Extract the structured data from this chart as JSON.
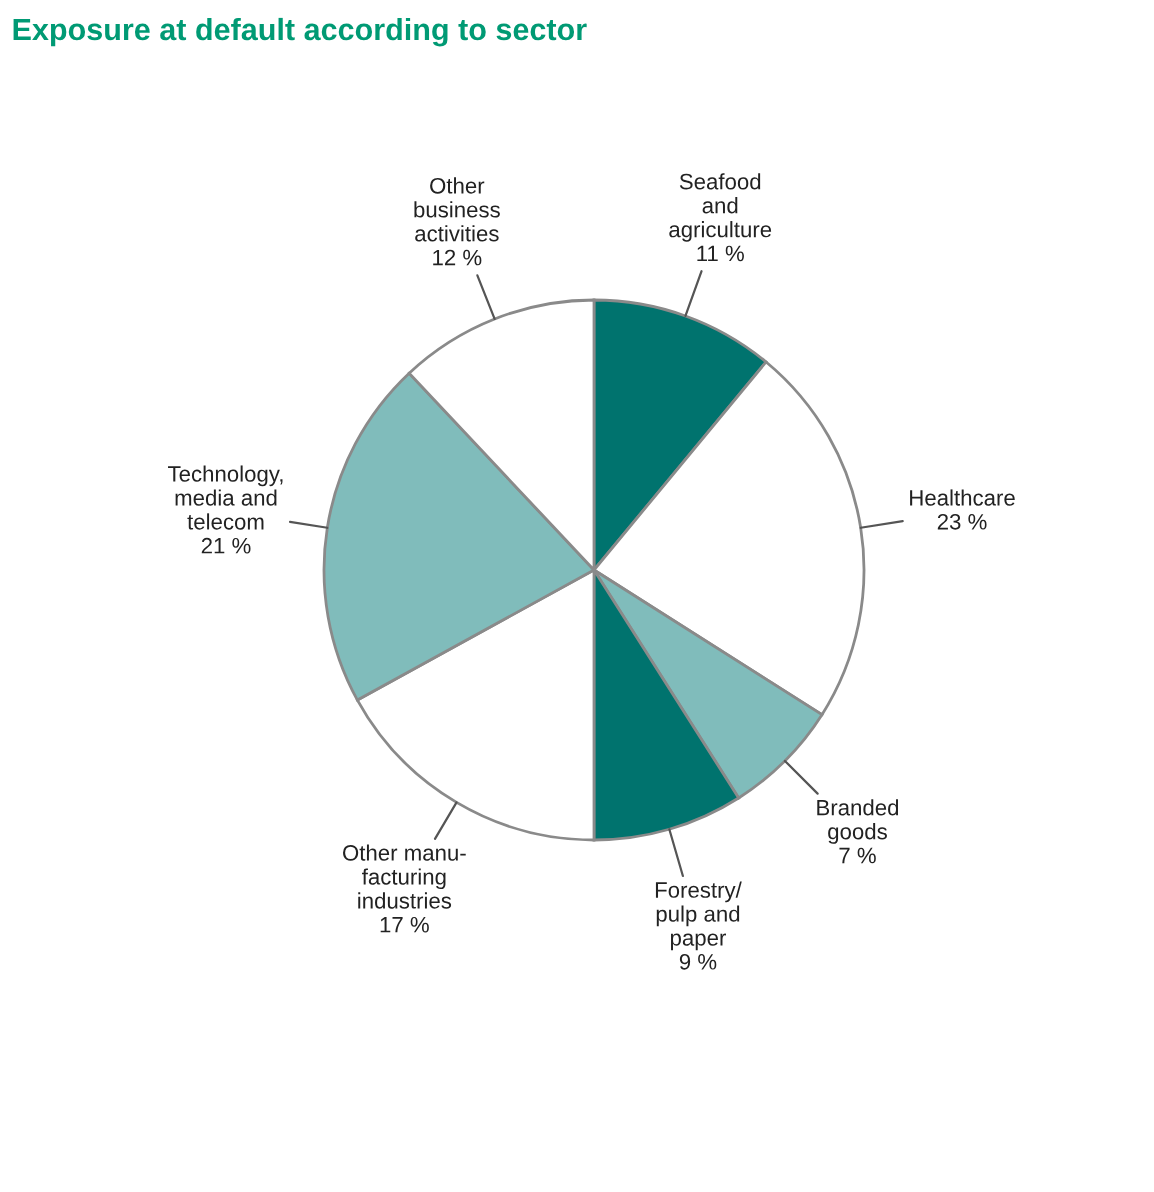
{
  "chart_data": {
    "type": "pie",
    "title": "Exposure at default according to sector",
    "categories": [
      "Seafood\nand\nagriculture",
      "Healthcare",
      "Branded\ngoods",
      "Forestry/\npulp and\npaper",
      "Other manu-\nfacturing\nindustries",
      "Technology,\nmedia and\ntelecom",
      "Other\nbusiness\nactivities"
    ],
    "values": [
      11,
      23,
      7,
      9,
      17,
      21,
      12
    ],
    "value_labels": [
      "11 %",
      "23 %",
      "7 %",
      "9 %",
      "17 %",
      "21 %",
      "12 %"
    ],
    "colors": [
      "#00736e",
      "#ffffff",
      "#80bcbb",
      "#00736e",
      "#ffffff",
      "#80bcbb",
      "#ffffff"
    ]
  }
}
